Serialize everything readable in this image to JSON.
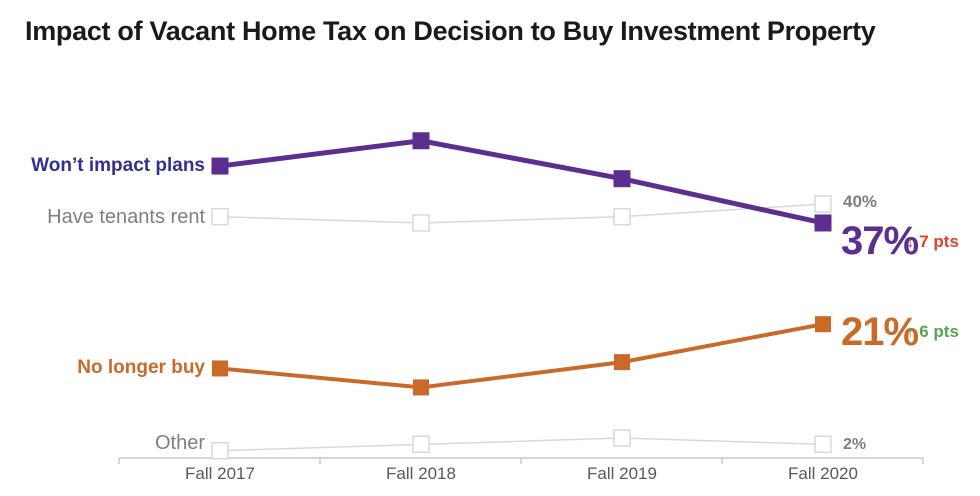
{
  "title": "Impact of Vacant Home Tax on Decision to Buy Investment Property",
  "chart_data": {
    "type": "line",
    "x": [
      "Fall 2017",
      "Fall 2018",
      "Fall 2019",
      "Fall 2020"
    ],
    "ylim": [
      0,
      55
    ],
    "grid": false,
    "legend_position": "inline-left-of-first-point",
    "series": [
      {
        "name": "Won’t impact plans",
        "slug": "wont-impact-plans",
        "values": [
          46,
          50,
          44,
          37
        ],
        "color": "#5B2E90",
        "label_color": "#33308F",
        "marker": "filled",
        "marker_size": 17,
        "line_width": 5
      },
      {
        "name": "Have tenants rent",
        "slug": "have-tenants-rent",
        "values": [
          38,
          37,
          38,
          40
        ],
        "color": "#D9D9D9",
        "label_color": "#7F7F7F",
        "marker": "open",
        "marker_size": 16,
        "line_width": 1.5
      },
      {
        "name": "No longer buy",
        "slug": "no-longer-buy",
        "values": [
          14,
          11,
          15,
          21
        ],
        "color": "#C96A28",
        "label_color": "#C96A28",
        "marker": "filled",
        "marker_size": 16,
        "line_width": 4
      },
      {
        "name": "Other",
        "slug": "other",
        "values": [
          1,
          2,
          3,
          2
        ],
        "color": "#D9D9D9",
        "label_color": "#7F7F7F",
        "marker": "open",
        "marker_size": 16,
        "line_width": 1.5
      }
    ],
    "annotations": [
      {
        "text": "40%",
        "series": "Have tenants rent",
        "at": "Fall 2020",
        "color": "#7F7F7F"
      },
      {
        "text": "37%",
        "series": "Won’t impact plans",
        "at": "Fall 2020",
        "color": "#5B2E90"
      },
      {
        "text": "↓ 7 pts",
        "series": "Won’t impact plans",
        "at": "Fall 2020",
        "color": "#E0422D"
      },
      {
        "text": "21%",
        "series": "No longer buy",
        "at": "Fall 2020",
        "color": "#C96A28"
      },
      {
        "text": "↑ 6 pts",
        "series": "No longer buy",
        "at": "Fall 2020",
        "color": "#56A456"
      },
      {
        "text": "2%",
        "series": "Other",
        "at": "Fall 2020",
        "color": "#7F7F7F"
      }
    ],
    "axis": {
      "color": "#C9C9C9",
      "tick_label_color": "#595959"
    }
  }
}
